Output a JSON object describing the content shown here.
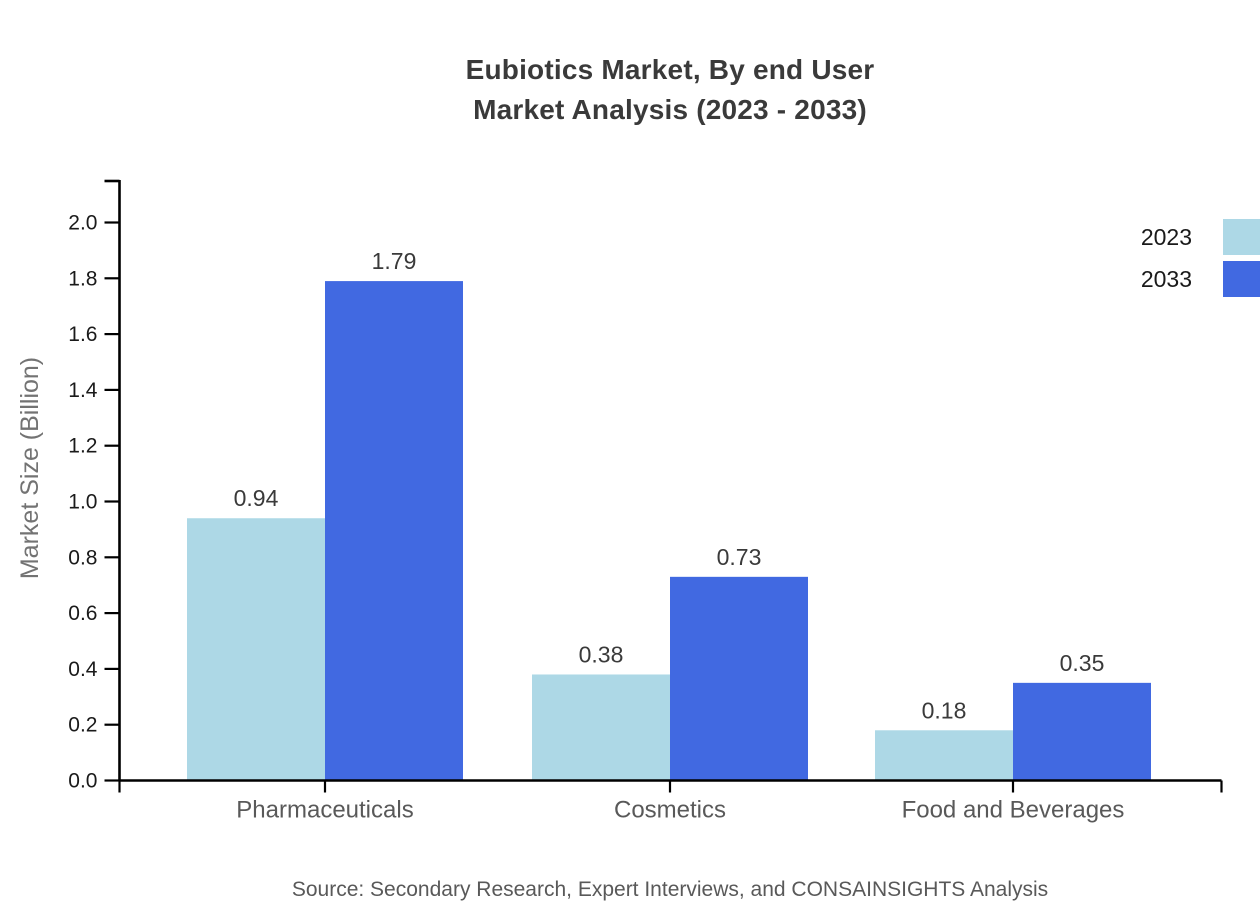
{
  "title": {
    "line1": "Eubiotics Market, By end User",
    "line2": "Market Analysis (2023 - 2033)"
  },
  "source": "Source: Secondary Research, Expert Interviews, and CONSAINSIGHTS Analysis",
  "colors": {
    "series_2023": "#ADD8E6",
    "series_2033": "#4169E1",
    "axis": "#000000",
    "tick_label": "#1a1a1a",
    "category_label": "#595959",
    "value_label": "#3a3a3a",
    "axis_title": "#737373",
    "title_text": "#3a3a3a",
    "source_text": "#595959",
    "background": "#ffffff"
  },
  "chart_data": {
    "type": "bar",
    "title": "Eubiotics Market, By end User Market Analysis (2023 - 2033)",
    "categories": [
      "Pharmaceuticals",
      "Cosmetics",
      "Food and Beverages"
    ],
    "series": [
      {
        "name": "2023",
        "color": "#ADD8E6",
        "values": [
          0.94,
          0.38,
          0.18
        ]
      },
      {
        "name": "2033",
        "color": "#4169E1",
        "values": [
          1.79,
          0.73,
          0.35
        ]
      }
    ],
    "xlabel": "",
    "ylabel": "Market Size (Billion)",
    "ylim": [
      0,
      2.15
    ],
    "yticks": [
      0.0,
      0.2,
      0.4,
      0.6,
      0.8,
      1.0,
      1.2,
      1.4,
      1.6,
      1.8,
      2.0
    ],
    "grid": false,
    "legend_position": "upper-right",
    "value_labels": true
  }
}
